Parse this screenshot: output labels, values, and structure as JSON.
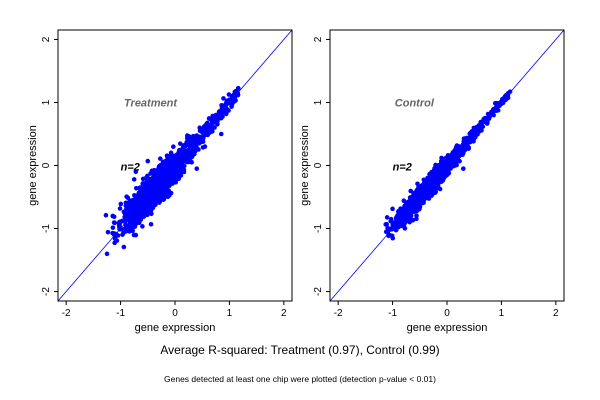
{
  "chart_data": [
    {
      "type": "scatter",
      "panel_label": "Treatment",
      "annotation": "n=2",
      "xlabel": "gene expression",
      "ylabel": "gene expression",
      "xlim": [
        -2.15,
        2.15
      ],
      "ylim": [
        -2.15,
        2.15
      ],
      "xticks": [
        "-2",
        "-1",
        "0",
        "1",
        "2"
      ],
      "yticks": [
        "-2",
        "-1",
        "0",
        "1",
        "2"
      ],
      "reference_line": "y = x",
      "point_color": "#0000ff",
      "line_color": "#0000ff",
      "cloud_range": [
        -1.2,
        1.2
      ],
      "r_squared": 0.97,
      "outliers": [
        [
          0.85,
          0.5
        ],
        [
          -0.5,
          0.07
        ],
        [
          -0.72,
          -0.1
        ],
        [
          -0.75,
          -0.22
        ],
        [
          0.4,
          -0.05
        ],
        [
          0.55,
          0.3
        ]
      ]
    },
    {
      "type": "scatter",
      "panel_label": "Control",
      "annotation": "n=2",
      "xlabel": "gene expression",
      "ylabel": "gene expression",
      "xlim": [
        -2.15,
        2.15
      ],
      "ylim": [
        -2.15,
        2.15
      ],
      "xticks": [
        "-2",
        "-1",
        "0",
        "1",
        "2"
      ],
      "yticks": [
        "-2",
        "-1",
        "0",
        "1",
        "2"
      ],
      "reference_line": "y = x",
      "point_color": "#0000ff",
      "line_color": "#0000ff",
      "cloud_range": [
        -1.15,
        1.15
      ],
      "r_squared": 0.99,
      "outliers": [
        [
          0.25,
          0.2
        ],
        [
          0.3,
          -0.05
        ],
        [
          -0.1,
          0.12
        ]
      ]
    }
  ],
  "caption": "Average R-squared: Treatment (0.97), Control (0.99)",
  "footnote": "Genes detected at least one chip were plotted (detection p-value < 0.01)"
}
